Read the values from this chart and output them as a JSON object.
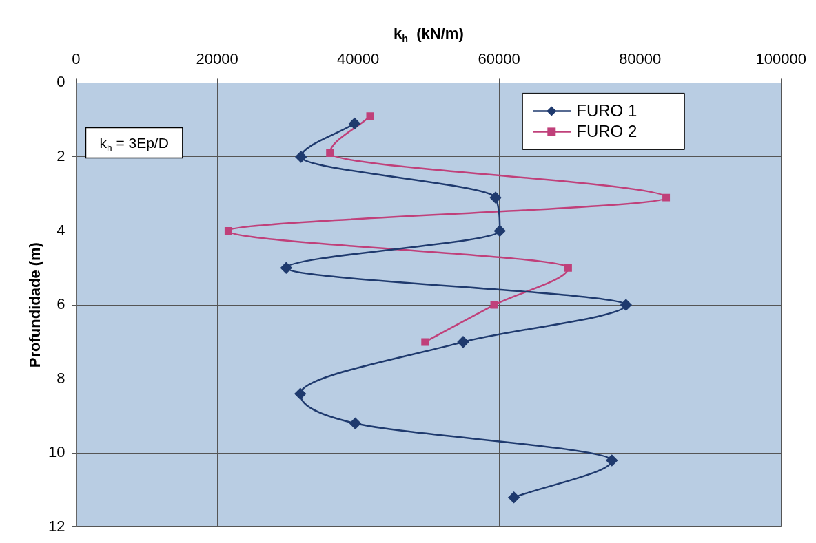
{
  "chart_data": {
    "type": "line",
    "xlabel": "k$_{h}$  (kN/m)",
    "ylabel": "Profundidade (m)",
    "xlim": [
      0,
      100000
    ],
    "xticks": [
      0,
      20000,
      40000,
      60000,
      80000,
      100000
    ],
    "ylim": [
      12,
      0
    ],
    "yticks": [
      0,
      2,
      4,
      6,
      8,
      10,
      12
    ],
    "grid": true,
    "legend": "top right",
    "line_style": "solid",
    "annotations": [
      "k$_{h}$ = 3Ep/D"
    ],
    "series": [
      {
        "name": "FURO 1",
        "color": "#1f3a6e",
        "marker": "diamond",
        "x": [
          39500,
          31900,
          59500,
          60100,
          29800,
          78000,
          54900,
          31800,
          39600,
          76000,
          62100
        ],
        "values": [
          1.1,
          2.0,
          3.1,
          4.0,
          5.0,
          6.0,
          7.0,
          8.4,
          9.2,
          10.2,
          11.2
        ]
      },
      {
        "name": "FURO 2",
        "color": "#c0407a",
        "marker": "square",
        "x": [
          41700,
          36000,
          83700,
          21600,
          69800,
          59300,
          49500
        ],
        "values": [
          0.9,
          1.9,
          3.1,
          4.0,
          5.0,
          6.0,
          7.0
        ]
      }
    ]
  }
}
